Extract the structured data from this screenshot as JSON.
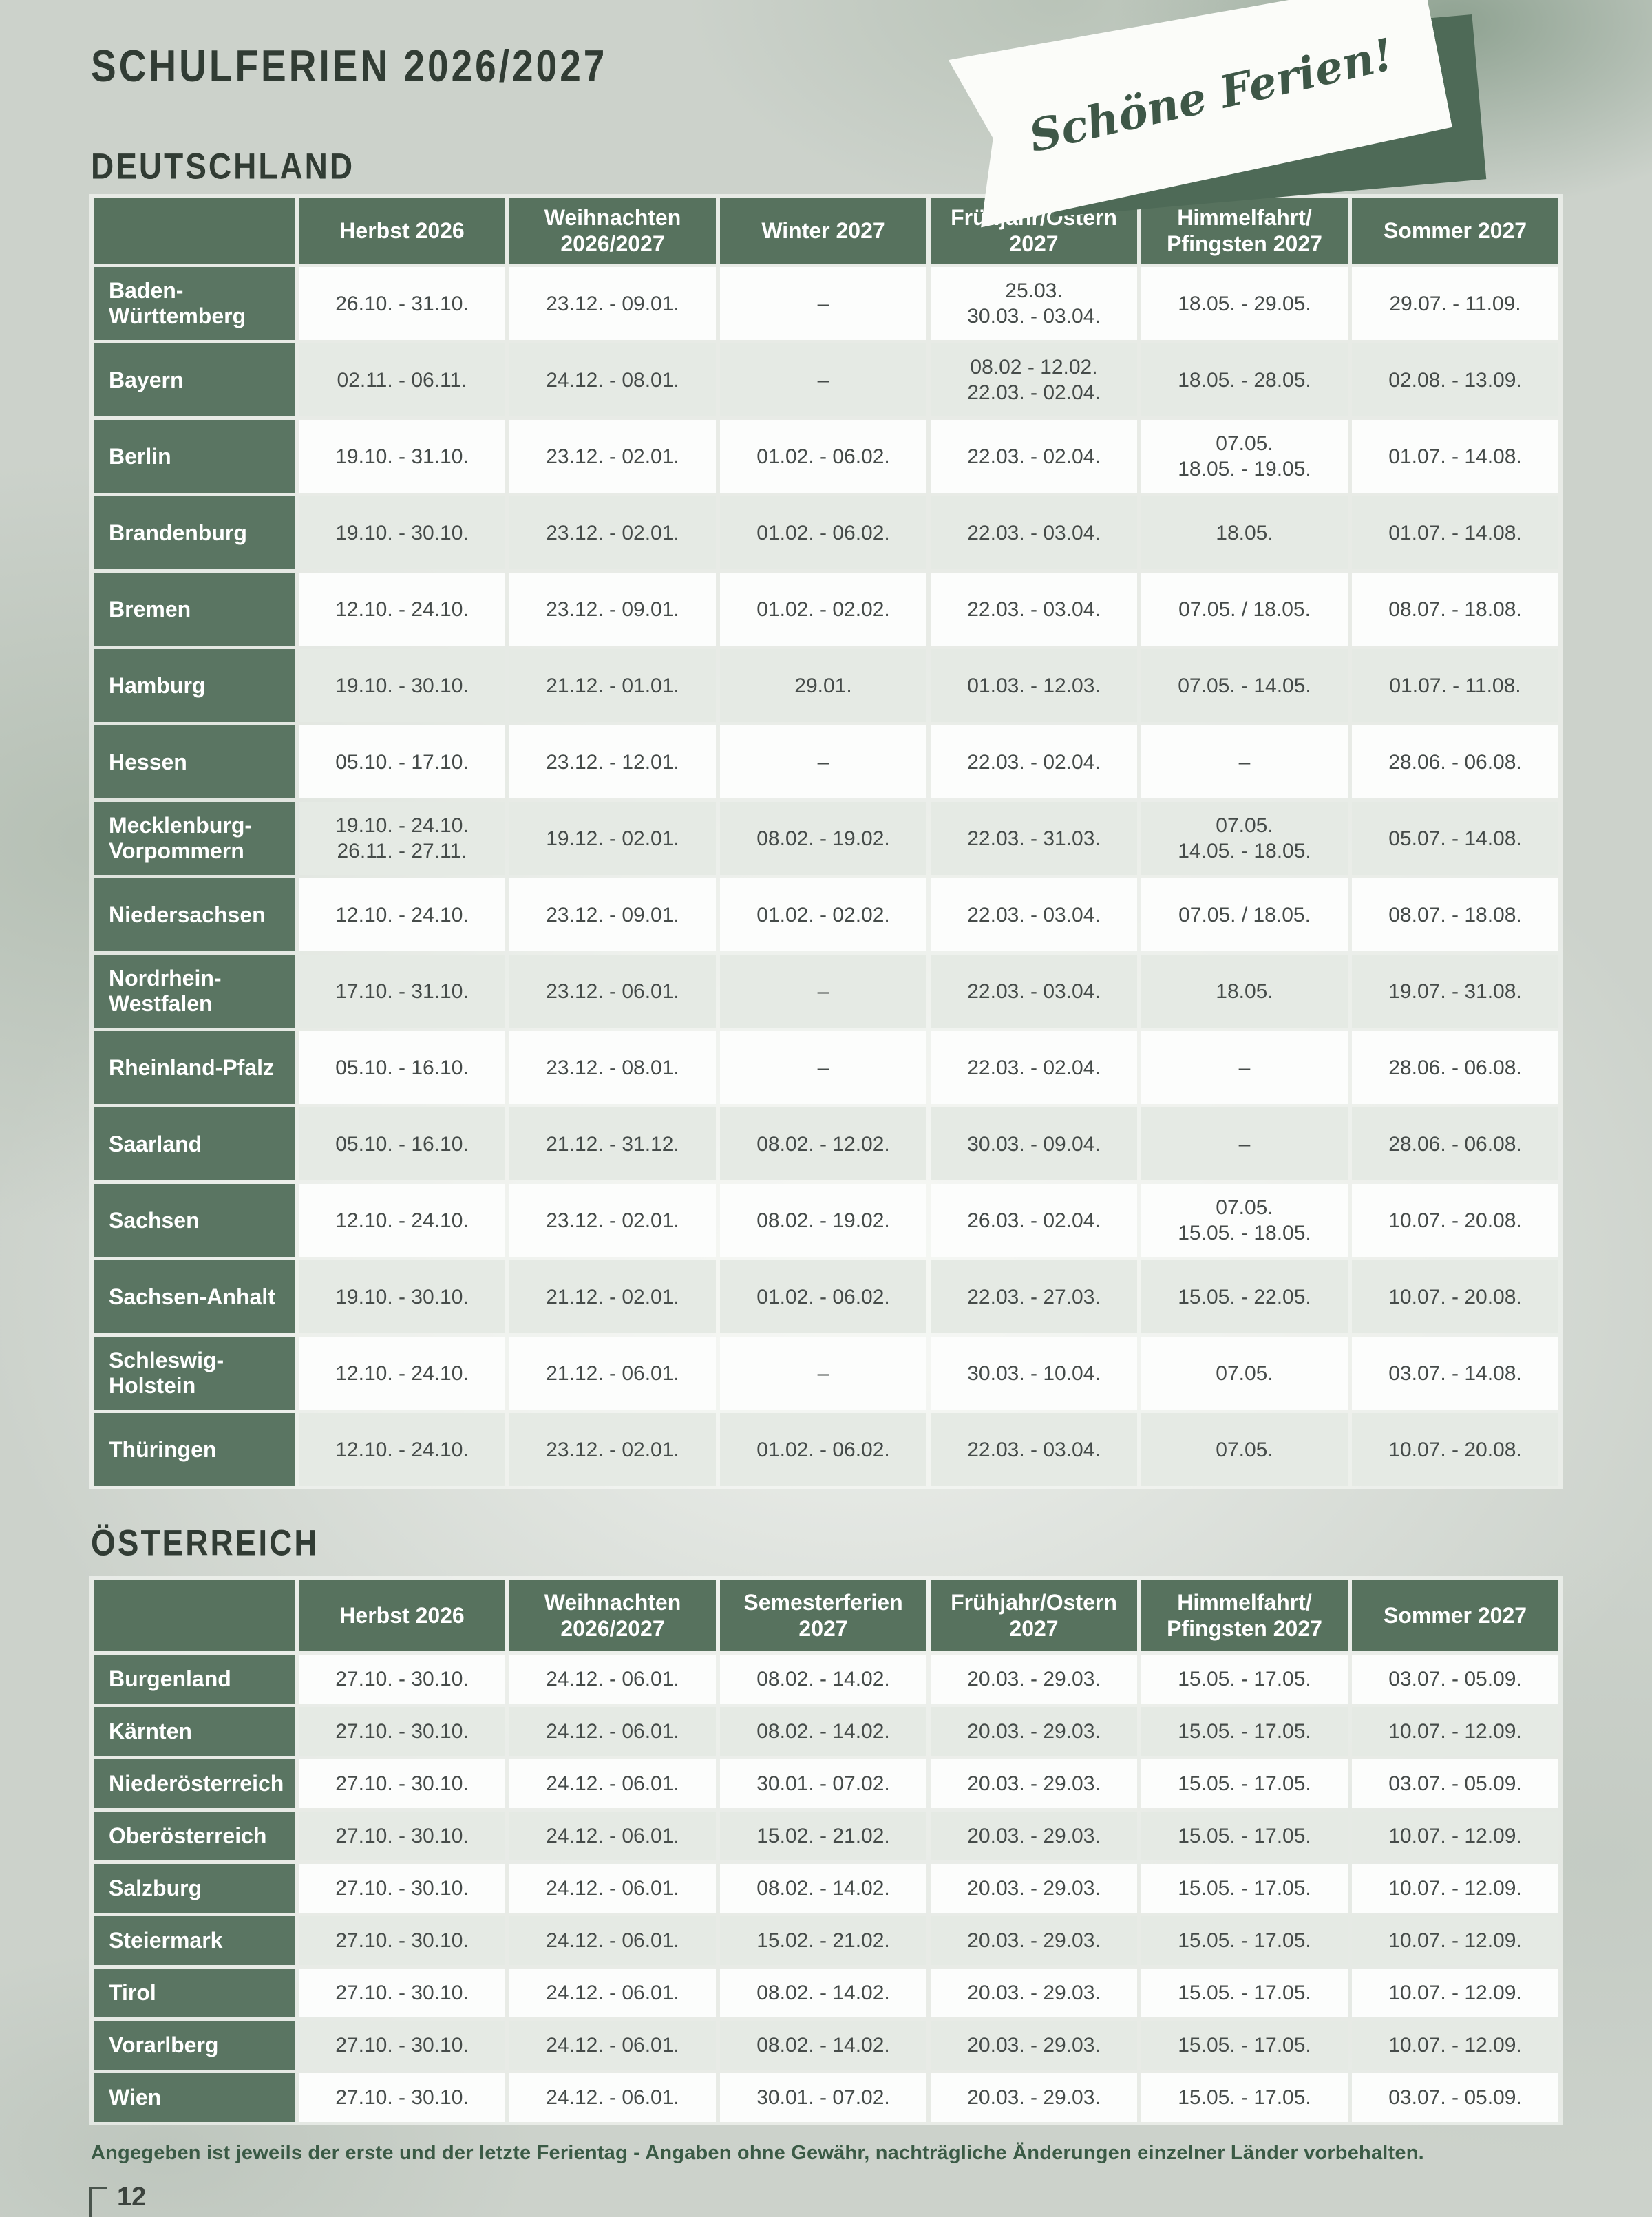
{
  "header": {
    "title": "SCHULFERIEN 2026/2027",
    "banner_text": "Schöne Ferien!"
  },
  "germany": {
    "section_label": "DEUTSCHLAND",
    "columns": [
      "Herbst 2026",
      "Weihnachten\n2026/2027",
      "Winter 2027",
      "Frühjahr/Ostern\n2027",
      "Himmelfahrt/\nPfingsten 2027",
      "Sommer 2027"
    ],
    "rows": [
      {
        "state": "Baden-\nWürttemberg",
        "cells": [
          "26.10. - 31.10.",
          "23.12. - 09.01.",
          "–",
          "25.03.\n30.03. - 03.04.",
          "18.05. - 29.05.",
          "29.07. - 11.09."
        ]
      },
      {
        "state": "Bayern",
        "cells": [
          "02.11. - 06.11.",
          "24.12. - 08.01.",
          "–",
          "08.02 - 12.02.\n22.03. - 02.04.",
          "18.05. - 28.05.",
          "02.08. - 13.09."
        ]
      },
      {
        "state": "Berlin",
        "cells": [
          "19.10. - 31.10.",
          "23.12. - 02.01.",
          "01.02. - 06.02.",
          "22.03. - 02.04.",
          "07.05.\n18.05. - 19.05.",
          "01.07. - 14.08."
        ]
      },
      {
        "state": "Brandenburg",
        "cells": [
          "19.10. - 30.10.",
          "23.12. - 02.01.",
          "01.02. - 06.02.",
          "22.03. - 03.04.",
          "18.05.",
          "01.07. - 14.08."
        ]
      },
      {
        "state": "Bremen",
        "cells": [
          "12.10. - 24.10.",
          "23.12. - 09.01.",
          "01.02. - 02.02.",
          "22.03. - 03.04.",
          "07.05. / 18.05.",
          "08.07. - 18.08."
        ]
      },
      {
        "state": "Hamburg",
        "cells": [
          "19.10. - 30.10.",
          "21.12. - 01.01.",
          "29.01.",
          "01.03. - 12.03.",
          "07.05. - 14.05.",
          "01.07. - 11.08."
        ]
      },
      {
        "state": "Hessen",
        "cells": [
          "05.10. - 17.10.",
          "23.12. - 12.01.",
          "–",
          "22.03. - 02.04.",
          "–",
          "28.06. - 06.08."
        ]
      },
      {
        "state": "Mecklenburg-\nVorpommern",
        "cells": [
          "19.10. - 24.10.\n26.11. - 27.11.",
          "19.12. - 02.01.",
          "08.02. - 19.02.",
          "22.03. - 31.03.",
          "07.05.\n14.05. - 18.05.",
          "05.07. - 14.08."
        ]
      },
      {
        "state": "Niedersachsen",
        "cells": [
          "12.10. - 24.10.",
          "23.12. - 09.01.",
          "01.02. - 02.02.",
          "22.03. - 03.04.",
          "07.05. / 18.05.",
          "08.07. - 18.08."
        ]
      },
      {
        "state": "Nordrhein-\nWestfalen",
        "cells": [
          "17.10. - 31.10.",
          "23.12. - 06.01.",
          "–",
          "22.03. - 03.04.",
          "18.05.",
          "19.07. - 31.08."
        ]
      },
      {
        "state": "Rheinland-Pfalz",
        "cells": [
          "05.10. - 16.10.",
          "23.12. - 08.01.",
          "–",
          "22.03. - 02.04.",
          "–",
          "28.06. - 06.08."
        ]
      },
      {
        "state": "Saarland",
        "cells": [
          "05.10. - 16.10.",
          "21.12. - 31.12.",
          "08.02. - 12.02.",
          "30.03. - 09.04.",
          "–",
          "28.06. - 06.08."
        ]
      },
      {
        "state": "Sachsen",
        "cells": [
          "12.10. - 24.10.",
          "23.12. - 02.01.",
          "08.02. - 19.02.",
          "26.03. - 02.04.",
          "07.05.\n15.05. - 18.05.",
          "10.07. - 20.08."
        ]
      },
      {
        "state": "Sachsen-Anhalt",
        "cells": [
          "19.10. - 30.10.",
          "21.12. - 02.01.",
          "01.02. - 06.02.",
          "22.03. - 27.03.",
          "15.05. - 22.05.",
          "10.07. - 20.08."
        ]
      },
      {
        "state": "Schleswig-\nHolstein",
        "cells": [
          "12.10. - 24.10.",
          "21.12. - 06.01.",
          "–",
          "30.03. - 10.04.",
          "07.05.",
          "03.07. - 14.08."
        ]
      },
      {
        "state": "Thüringen",
        "cells": [
          "12.10. - 24.10.",
          "23.12. - 02.01.",
          "01.02. - 06.02.",
          "22.03. - 03.04.",
          "07.05.",
          "10.07. - 20.08."
        ]
      }
    ]
  },
  "austria": {
    "section_label": "ÖSTERREICH",
    "columns": [
      "Herbst 2026",
      "Weihnachten\n2026/2027",
      "Semesterferien\n2027",
      "Frühjahr/Ostern\n2027",
      "Himmelfahrt/\nPfingsten 2027",
      "Sommer 2027"
    ],
    "rows": [
      {
        "state": "Burgenland",
        "cells": [
          "27.10. - 30.10.",
          "24.12. - 06.01.",
          "08.02. - 14.02.",
          "20.03. - 29.03.",
          "15.05. - 17.05.",
          "03.07. - 05.09."
        ]
      },
      {
        "state": "Kärnten",
        "cells": [
          "27.10. - 30.10.",
          "24.12. - 06.01.",
          "08.02. - 14.02.",
          "20.03. - 29.03.",
          "15.05. - 17.05.",
          "10.07. - 12.09."
        ]
      },
      {
        "state": "Niederösterreich",
        "cells": [
          "27.10. - 30.10.",
          "24.12. - 06.01.",
          "30.01. - 07.02.",
          "20.03. - 29.03.",
          "15.05. - 17.05.",
          "03.07. - 05.09."
        ]
      },
      {
        "state": "Oberösterreich",
        "cells": [
          "27.10. - 30.10.",
          "24.12. - 06.01.",
          "15.02. - 21.02.",
          "20.03. - 29.03.",
          "15.05. - 17.05.",
          "10.07. - 12.09."
        ]
      },
      {
        "state": "Salzburg",
        "cells": [
          "27.10. - 30.10.",
          "24.12. - 06.01.",
          "08.02. - 14.02.",
          "20.03. - 29.03.",
          "15.05. - 17.05.",
          "10.07. - 12.09."
        ]
      },
      {
        "state": "Steiermark",
        "cells": [
          "27.10. - 30.10.",
          "24.12. - 06.01.",
          "15.02. - 21.02.",
          "20.03. - 29.03.",
          "15.05. - 17.05.",
          "10.07. - 12.09."
        ]
      },
      {
        "state": "Tirol",
        "cells": [
          "27.10. - 30.10.",
          "24.12. - 06.01.",
          "08.02. - 14.02.",
          "20.03. - 29.03.",
          "15.05. - 17.05.",
          "10.07. - 12.09."
        ]
      },
      {
        "state": "Vorarlberg",
        "cells": [
          "27.10. - 30.10.",
          "24.12. - 06.01.",
          "08.02. - 14.02.",
          "20.03. - 29.03.",
          "15.05. - 17.05.",
          "10.07. - 12.09."
        ]
      },
      {
        "state": "Wien",
        "cells": [
          "27.10. - 30.10.",
          "24.12. - 06.01.",
          "30.01. - 07.02.",
          "20.03. - 29.03.",
          "15.05. - 17.05.",
          "03.07. - 05.09."
        ]
      }
    ]
  },
  "footer": {
    "note": "Angegeben ist jeweils der erste und der letzte Ferientag - Angaben ohne Gewähr, nachträgliche Änderungen einzelner Länder vorbehalten.",
    "page_number": "12"
  },
  "colors": {
    "header_green": "#57725e",
    "label_green": "#5a7562",
    "row_light": "#e5eae4",
    "row_white": "#fcfdfc",
    "banner_band_green": "#4e6a57",
    "footnote_green": "#3a5a45"
  }
}
